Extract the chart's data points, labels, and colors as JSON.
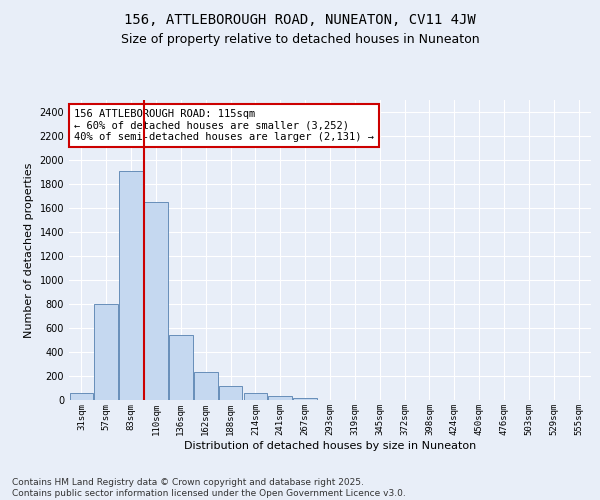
{
  "title1": "156, ATTLEBOROUGH ROAD, NUNEATON, CV11 4JW",
  "title2": "Size of property relative to detached houses in Nuneaton",
  "xlabel": "Distribution of detached houses by size in Nuneaton",
  "ylabel": "Number of detached properties",
  "categories": [
    "31sqm",
    "57sqm",
    "83sqm",
    "110sqm",
    "136sqm",
    "162sqm",
    "188sqm",
    "214sqm",
    "241sqm",
    "267sqm",
    "293sqm",
    "319sqm",
    "345sqm",
    "372sqm",
    "398sqm",
    "424sqm",
    "450sqm",
    "476sqm",
    "503sqm",
    "529sqm",
    "555sqm"
  ],
  "values": [
    55,
    800,
    1910,
    1650,
    540,
    235,
    115,
    60,
    30,
    15,
    0,
    0,
    0,
    0,
    0,
    0,
    0,
    0,
    0,
    0,
    0
  ],
  "bar_color": "#c5d8f0",
  "bar_edge_color": "#5580b0",
  "vline_color": "#cc0000",
  "annotation_text": "156 ATTLEBOROUGH ROAD: 115sqm\n← 60% of detached houses are smaller (3,252)\n40% of semi-detached houses are larger (2,131) →",
  "annotation_box_color": "#ffffff",
  "annotation_box_edge": "#cc0000",
  "ylim": [
    0,
    2500
  ],
  "yticks": [
    0,
    200,
    400,
    600,
    800,
    1000,
    1200,
    1400,
    1600,
    1800,
    2000,
    2200,
    2400
  ],
  "footnote": "Contains HM Land Registry data © Crown copyright and database right 2025.\nContains public sector information licensed under the Open Government Licence v3.0.",
  "bg_color": "#e8eef8",
  "plot_bg_color": "#e8eef8",
  "title_fontsize": 10,
  "subtitle_fontsize": 9,
  "tick_fontsize": 6.5,
  "label_fontsize": 8,
  "annotation_fontsize": 7.5,
  "footnote_fontsize": 6.5
}
